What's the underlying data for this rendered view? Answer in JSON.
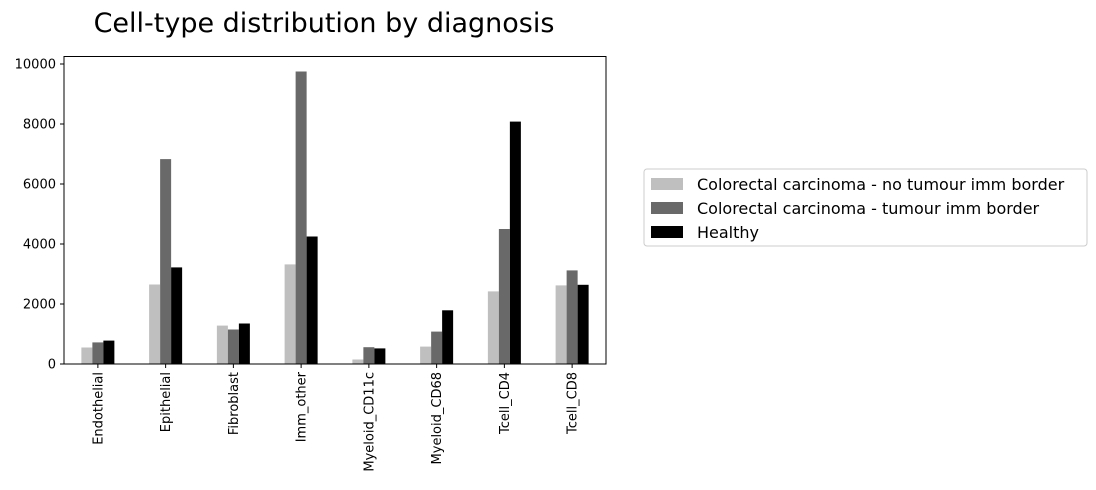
{
  "chart_data": {
    "type": "bar",
    "title": "Cell-type distribution by diagnosis",
    "xlabel": "",
    "ylabel": "",
    "categories": [
      "Endothelial",
      "Epithelial",
      "Fibroblast",
      "Imm_other",
      "Myeloid_CD11c",
      "Myeloid_CD68",
      "Tcell_CD4",
      "Tcell_CD8"
    ],
    "series": [
      {
        "name": "Colorectal carcinoma - no tumour imm border",
        "color": "#bfbfbf",
        "values": [
          550,
          2650,
          1280,
          3320,
          150,
          580,
          2420,
          2620
        ]
      },
      {
        "name": "Colorectal carcinoma - tumour imm border",
        "color": "#696969",
        "values": [
          720,
          6830,
          1150,
          9750,
          560,
          1080,
          4500,
          3120
        ]
      },
      {
        "name": "Healthy",
        "color": "#000000",
        "values": [
          780,
          3220,
          1350,
          4250,
          520,
          1790,
          8080,
          2640
        ]
      }
    ],
    "ylim": [
      0,
      10250
    ],
    "yticks": [
      0,
      2000,
      4000,
      6000,
      8000,
      10000
    ],
    "grid": false,
    "legend_position": "outside-right"
  }
}
